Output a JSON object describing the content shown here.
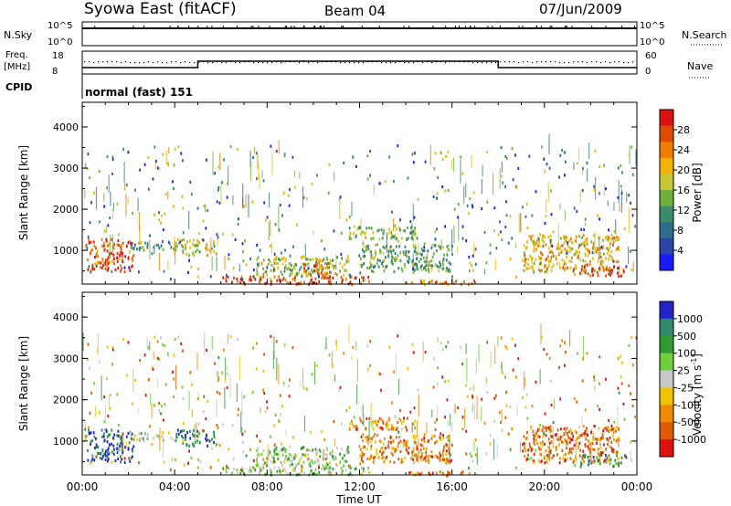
{
  "header": {
    "station": "Syowa East (fitACF)",
    "beam": "Beam 04",
    "date": "07/Jun/2009"
  },
  "panels": {
    "nsky": {
      "label": "N.Sky",
      "ticks": [
        "10^5",
        "10^0"
      ],
      "right_label": "N.Search",
      "right_ticks": [
        "10^5",
        "10^0"
      ]
    },
    "freq": {
      "label_top": "Freq.",
      "label_bottom": "[MHz]",
      "ticks": [
        "18",
        "8"
      ],
      "right_label": "Nave",
      "right_ticks": [
        "60",
        "0"
      ]
    },
    "cpid": {
      "label": "CPID",
      "mode": "normal (fast) 151"
    }
  },
  "chart_data": [
    {
      "type": "heatmap",
      "name": "power",
      "ylabel": "Slant Range [km]",
      "ylim": [
        180,
        4600
      ],
      "yticks": [
        1000,
        2000,
        3000,
        4000
      ],
      "xlim": [
        0,
        24
      ],
      "colorbar": {
        "label": "Power [dB]",
        "range": [
          0,
          32
        ],
        "ticks": [
          4,
          8,
          12,
          16,
          20,
          24,
          28
        ],
        "colors": [
          "#1a1aff",
          "#2a44a8",
          "#2d6e8c",
          "#3a8c6a",
          "#6fb03c",
          "#c8c832",
          "#f2b400",
          "#f07c00",
          "#e04a00",
          "#e01010"
        ]
      },
      "features": [
        {
          "t": [
            0.2,
            2.2
          ],
          "r": [
            500,
            1300
          ],
          "level": 0.85
        },
        {
          "t": [
            2.0,
            4.0
          ],
          "r": [
            1050,
            1250
          ],
          "level": 0.35
        },
        {
          "t": [
            4.0,
            5.8
          ],
          "r": [
            900,
            1300
          ],
          "level": 0.55
        },
        {
          "t": [
            6.0,
            12.5
          ],
          "r": [
            200,
            400
          ],
          "level": 0.9
        },
        {
          "t": [
            7.5,
            11.5
          ],
          "r": [
            400,
            900
          ],
          "level": 0.5
        },
        {
          "t": [
            9.5,
            11.0
          ],
          "r": [
            400,
            800
          ],
          "level": 0.75
        },
        {
          "t": [
            11.5,
            14.5
          ],
          "r": [
            1300,
            1600
          ],
          "level": 0.5
        },
        {
          "t": [
            12.0,
            16.0
          ],
          "r": [
            500,
            1200
          ],
          "level": 0.4
        },
        {
          "t": [
            14.0,
            17.0
          ],
          "r": [
            180,
            300
          ],
          "level": 0.75
        },
        {
          "t": [
            19.0,
            23.2
          ],
          "r": [
            500,
            1400
          ],
          "level": 0.65
        },
        {
          "t": [
            21.5,
            23.5
          ],
          "r": [
            400,
            700
          ],
          "level": 0.85
        }
      ]
    },
    {
      "type": "heatmap",
      "name": "velocity",
      "ylabel": "Slant Range [km]",
      "ylim": [
        180,
        4600
      ],
      "yticks": [
        1000,
        2000,
        3000,
        4000
      ],
      "xlim": [
        0,
        24
      ],
      "xlabel": "Time UT",
      "xticks": [
        "00:00",
        "04:00",
        "08:00",
        "12:00",
        "16:00",
        "20:00",
        "00:00"
      ],
      "colorbar": {
        "label": "Velocity [m s^-1]",
        "ticks": [
          "1000",
          "500",
          "100",
          "25",
          "-25",
          "-100",
          "-500",
          "-1000"
        ],
        "colors": [
          "#2222cc",
          "#2f8a6e",
          "#2f9a2f",
          "#6fcf3a",
          "#c8c8c8",
          "#f2c400",
          "#f08a00",
          "#e05a00",
          "#e01010"
        ]
      },
      "features": [
        {
          "t": [
            0.2,
            2.2
          ],
          "r": [
            500,
            1300
          ],
          "level": 0.9
        },
        {
          "t": [
            2.0,
            4.0
          ],
          "r": [
            1050,
            1250
          ],
          "level": 0.55
        },
        {
          "t": [
            4.0,
            5.8
          ],
          "r": [
            900,
            1300
          ],
          "level": 0.85
        },
        {
          "t": [
            6.0,
            12.5
          ],
          "r": [
            200,
            400
          ],
          "level": 0.6
        },
        {
          "t": [
            7.5,
            11.5
          ],
          "r": [
            400,
            900
          ],
          "level": 0.6
        },
        {
          "t": [
            11.5,
            14.5
          ],
          "r": [
            1300,
            1600
          ],
          "level": 0.25
        },
        {
          "t": [
            12.0,
            16.0
          ],
          "r": [
            500,
            1200
          ],
          "level": 0.25
        },
        {
          "t": [
            14.0,
            17.0
          ],
          "r": [
            180,
            300
          ],
          "level": 0.2
        },
        {
          "t": [
            19.0,
            23.2
          ],
          "r": [
            500,
            1400
          ],
          "level": 0.2
        },
        {
          "t": [
            21.5,
            23.5
          ],
          "r": [
            400,
            700
          ],
          "level": 0.75
        }
      ]
    }
  ]
}
